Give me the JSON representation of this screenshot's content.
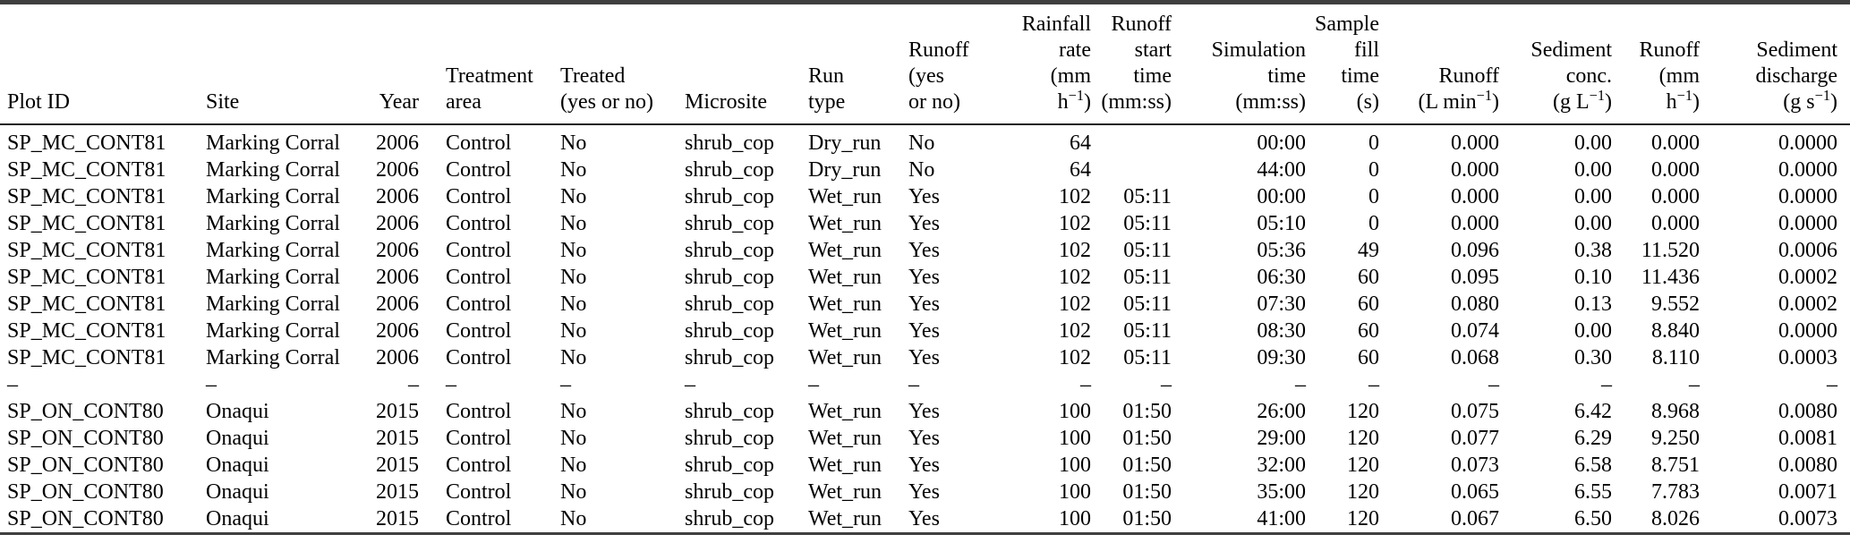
{
  "meta": {
    "description_colors": {
      "rule_color": "#3f3f3f",
      "text_color": "#000000",
      "background": "#ffffff"
    }
  },
  "table": {
    "columns": [
      {
        "id": "plot_id",
        "label_lines": [
          "Plot ID"
        ]
      },
      {
        "id": "site",
        "label_lines": [
          "Site"
        ]
      },
      {
        "id": "year",
        "label_lines": [
          "Year"
        ]
      },
      {
        "id": "treatment_area",
        "label_lines": [
          "Treatment",
          "area"
        ]
      },
      {
        "id": "treated",
        "label_lines": [
          "Treated",
          "(yes or no)"
        ]
      },
      {
        "id": "microsite",
        "label_lines": [
          "Microsite"
        ]
      },
      {
        "id": "run_type",
        "label_lines": [
          "Run",
          "type"
        ]
      },
      {
        "id": "runoff_yes_or_no",
        "label_lines": [
          "Runoff",
          "(yes",
          "or no)"
        ]
      },
      {
        "id": "rainfall_rate",
        "label_lines": [
          "Rainfall",
          "rate",
          "(mm",
          "h⁻¹)"
        ]
      },
      {
        "id": "runoff_start_time",
        "label_lines": [
          "Runoff",
          "start",
          "time",
          "(mm:ss)"
        ]
      },
      {
        "id": "simulation_time",
        "label_lines": [
          "Simulation",
          "time",
          "(mm:ss)"
        ]
      },
      {
        "id": "sample_fill_time",
        "label_lines": [
          "Sample",
          "fill",
          "time",
          "(s)"
        ]
      },
      {
        "id": "runoff_l_min",
        "label_lines": [
          "Runoff",
          "(L min⁻¹)"
        ]
      },
      {
        "id": "sediment_conc",
        "label_lines": [
          "Sediment",
          "conc.",
          "(g L⁻¹)"
        ]
      },
      {
        "id": "runoff_mm_h",
        "label_lines": [
          "Runoff",
          "(mm",
          "h⁻¹)"
        ]
      },
      {
        "id": "sediment_discharge",
        "label_lines": [
          "Sediment",
          "discharge",
          "(g s⁻¹)"
        ]
      }
    ],
    "rows": [
      [
        "SP_MC_CONT81",
        "Marking Corral",
        "2006",
        "Control",
        "No",
        "shrub_cop",
        "Dry_run",
        "No",
        "64",
        "",
        "00:00",
        "0",
        "0.000",
        "0.00",
        "0.000",
        "0.0000"
      ],
      [
        "SP_MC_CONT81",
        "Marking Corral",
        "2006",
        "Control",
        "No",
        "shrub_cop",
        "Dry_run",
        "No",
        "64",
        "",
        "44:00",
        "0",
        "0.000",
        "0.00",
        "0.000",
        "0.0000"
      ],
      [
        "SP_MC_CONT81",
        "Marking Corral",
        "2006",
        "Control",
        "No",
        "shrub_cop",
        "Wet_run",
        "Yes",
        "102",
        "05:11",
        "00:00",
        "0",
        "0.000",
        "0.00",
        "0.000",
        "0.0000"
      ],
      [
        "SP_MC_CONT81",
        "Marking Corral",
        "2006",
        "Control",
        "No",
        "shrub_cop",
        "Wet_run",
        "Yes",
        "102",
        "05:11",
        "05:10",
        "0",
        "0.000",
        "0.00",
        "0.000",
        "0.0000"
      ],
      [
        "SP_MC_CONT81",
        "Marking Corral",
        "2006",
        "Control",
        "No",
        "shrub_cop",
        "Wet_run",
        "Yes",
        "102",
        "05:11",
        "05:36",
        "49",
        "0.096",
        "0.38",
        "11.520",
        "0.0006"
      ],
      [
        "SP_MC_CONT81",
        "Marking Corral",
        "2006",
        "Control",
        "No",
        "shrub_cop",
        "Wet_run",
        "Yes",
        "102",
        "05:11",
        "06:30",
        "60",
        "0.095",
        "0.10",
        "11.436",
        "0.0002"
      ],
      [
        "SP_MC_CONT81",
        "Marking Corral",
        "2006",
        "Control",
        "No",
        "shrub_cop",
        "Wet_run",
        "Yes",
        "102",
        "05:11",
        "07:30",
        "60",
        "0.080",
        "0.13",
        "9.552",
        "0.0002"
      ],
      [
        "SP_MC_CONT81",
        "Marking Corral",
        "2006",
        "Control",
        "No",
        "shrub_cop",
        "Wet_run",
        "Yes",
        "102",
        "05:11",
        "08:30",
        "60",
        "0.074",
        "0.00",
        "8.840",
        "0.0000"
      ],
      [
        "SP_MC_CONT81",
        "Marking Corral",
        "2006",
        "Control",
        "No",
        "shrub_cop",
        "Wet_run",
        "Yes",
        "102",
        "05:11",
        "09:30",
        "60",
        "0.068",
        "0.30",
        "8.110",
        "0.0003"
      ],
      [
        "–",
        "–",
        "–",
        "–",
        "–",
        "–",
        "–",
        "–",
        "–",
        "–",
        "–",
        "–",
        "–",
        "–",
        "–",
        "–"
      ],
      [
        "SP_ON_CONT80",
        "Onaqui",
        "2015",
        "Control",
        "No",
        "shrub_cop",
        "Wet_run",
        "Yes",
        "100",
        "01:50",
        "26:00",
        "120",
        "0.075",
        "6.42",
        "8.968",
        "0.0080"
      ],
      [
        "SP_ON_CONT80",
        "Onaqui",
        "2015",
        "Control",
        "No",
        "shrub_cop",
        "Wet_run",
        "Yes",
        "100",
        "01:50",
        "29:00",
        "120",
        "0.077",
        "6.29",
        "9.250",
        "0.0081"
      ],
      [
        "SP_ON_CONT80",
        "Onaqui",
        "2015",
        "Control",
        "No",
        "shrub_cop",
        "Wet_run",
        "Yes",
        "100",
        "01:50",
        "32:00",
        "120",
        "0.073",
        "6.58",
        "8.751",
        "0.0080"
      ],
      [
        "SP_ON_CONT80",
        "Onaqui",
        "2015",
        "Control",
        "No",
        "shrub_cop",
        "Wet_run",
        "Yes",
        "100",
        "01:50",
        "35:00",
        "120",
        "0.065",
        "6.55",
        "7.783",
        "0.0071"
      ],
      [
        "SP_ON_CONT80",
        "Onaqui",
        "2015",
        "Control",
        "No",
        "shrub_cop",
        "Wet_run",
        "Yes",
        "100",
        "01:50",
        "41:00",
        "120",
        "0.067",
        "6.50",
        "8.026",
        "0.0073"
      ]
    ]
  }
}
